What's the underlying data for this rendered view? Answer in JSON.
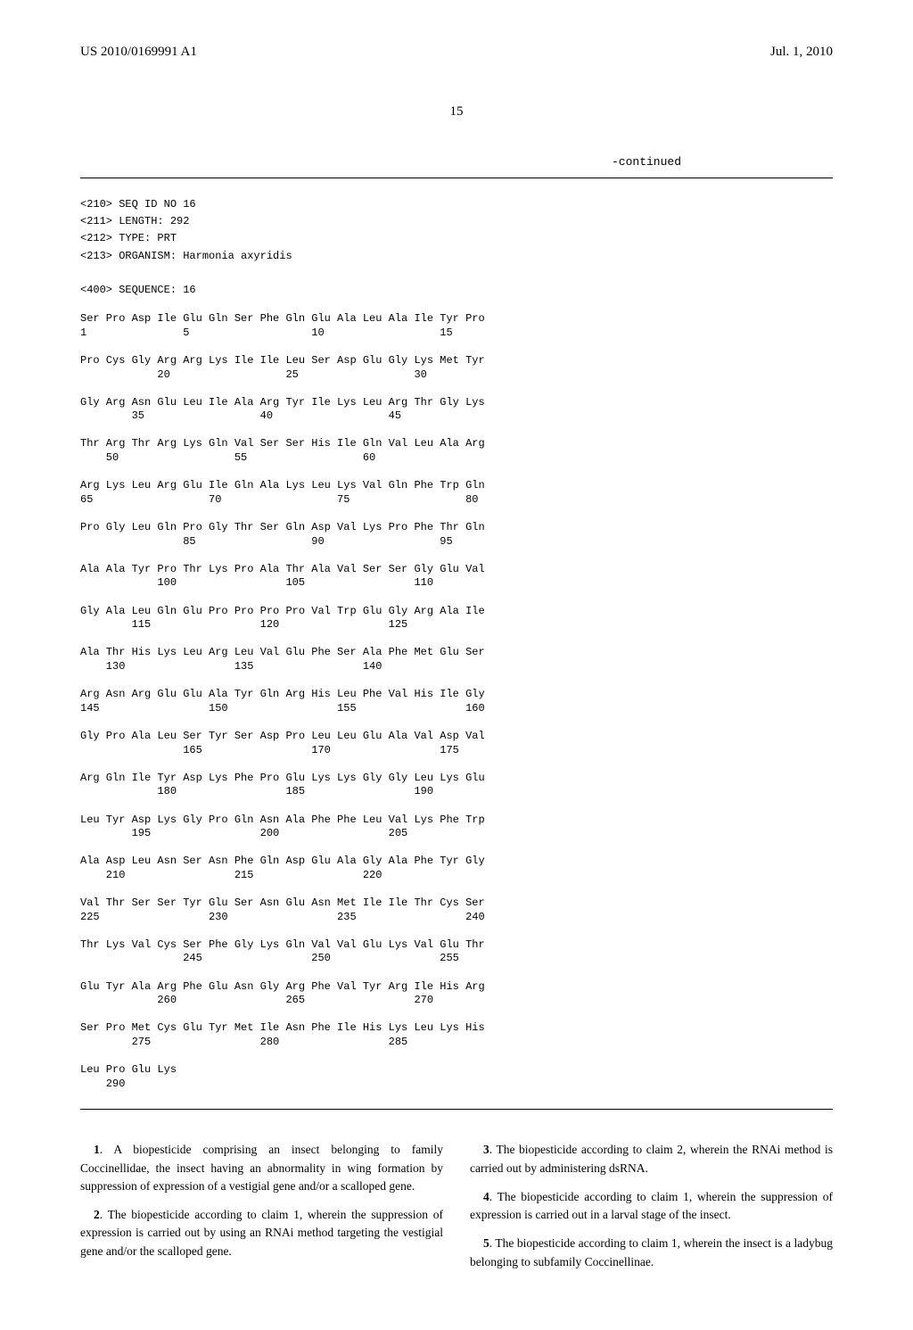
{
  "header": {
    "pub_number": "US 2010/0169991 A1",
    "pub_date": "Jul. 1, 2010"
  },
  "page_number": "15",
  "continued_label": "-continued",
  "sequence_meta": [
    "<210> SEQ ID NO 16",
    "<211> LENGTH: 292",
    "<212> TYPE: PRT",
    "<213> ORGANISM: Harmonia axyridis",
    "",
    "<400> SEQUENCE: 16"
  ],
  "sequence_rows": [
    {
      "aa": "Ser Pro Asp Ile Glu Gln Ser Phe Gln Glu Ala Leu Ala Ile Tyr Pro",
      "nums": "1               5                   10                  15"
    },
    {
      "aa": "Pro Cys Gly Arg Arg Lys Ile Ile Leu Ser Asp Glu Gly Lys Met Tyr",
      "nums": "            20                  25                  30"
    },
    {
      "aa": "Gly Arg Asn Glu Leu Ile Ala Arg Tyr Ile Lys Leu Arg Thr Gly Lys",
      "nums": "        35                  40                  45"
    },
    {
      "aa": "Thr Arg Thr Arg Lys Gln Val Ser Ser His Ile Gln Val Leu Ala Arg",
      "nums": "    50                  55                  60"
    },
    {
      "aa": "Arg Lys Leu Arg Glu Ile Gln Ala Lys Leu Lys Val Gln Phe Trp Gln",
      "nums": "65                  70                  75                  80"
    },
    {
      "aa": "Pro Gly Leu Gln Pro Gly Thr Ser Gln Asp Val Lys Pro Phe Thr Gln",
      "nums": "                85                  90                  95"
    },
    {
      "aa": "Ala Ala Tyr Pro Thr Lys Pro Ala Thr Ala Val Ser Ser Gly Glu Val",
      "nums": "            100                 105                 110"
    },
    {
      "aa": "Gly Ala Leu Gln Glu Pro Pro Pro Pro Val Trp Glu Gly Arg Ala Ile",
      "nums": "        115                 120                 125"
    },
    {
      "aa": "Ala Thr His Lys Leu Arg Leu Val Glu Phe Ser Ala Phe Met Glu Ser",
      "nums": "    130                 135                 140"
    },
    {
      "aa": "Arg Asn Arg Glu Glu Ala Tyr Gln Arg His Leu Phe Val His Ile Gly",
      "nums": "145                 150                 155                 160"
    },
    {
      "aa": "Gly Pro Ala Leu Ser Tyr Ser Asp Pro Leu Leu Glu Ala Val Asp Val",
      "nums": "                165                 170                 175"
    },
    {
      "aa": "Arg Gln Ile Tyr Asp Lys Phe Pro Glu Lys Lys Gly Gly Leu Lys Glu",
      "nums": "            180                 185                 190"
    },
    {
      "aa": "Leu Tyr Asp Lys Gly Pro Gln Asn Ala Phe Phe Leu Val Lys Phe Trp",
      "nums": "        195                 200                 205"
    },
    {
      "aa": "Ala Asp Leu Asn Ser Asn Phe Gln Asp Glu Ala Gly Ala Phe Tyr Gly",
      "nums": "    210                 215                 220"
    },
    {
      "aa": "Val Thr Ser Ser Tyr Glu Ser Asn Glu Asn Met Ile Ile Thr Cys Ser",
      "nums": "225                 230                 235                 240"
    },
    {
      "aa": "Thr Lys Val Cys Ser Phe Gly Lys Gln Val Val Glu Lys Val Glu Thr",
      "nums": "                245                 250                 255"
    },
    {
      "aa": "Glu Tyr Ala Arg Phe Glu Asn Gly Arg Phe Val Tyr Arg Ile His Arg",
      "nums": "            260                 265                 270"
    },
    {
      "aa": "Ser Pro Met Cys Glu Tyr Met Ile Asn Phe Ile His Lys Leu Lys His",
      "nums": "        275                 280                 285"
    },
    {
      "aa": "Leu Pro Glu Lys",
      "nums": "    290"
    }
  ],
  "claims": [
    {
      "num": "1",
      "text": ". A biopesticide comprising an insect belonging to family Coccinellidae, the insect having an abnormality in wing formation by suppression of expression of a vestigial gene and/or a scalloped gene."
    },
    {
      "num": "2",
      "text": ". The biopesticide according to claim 1, wherein the suppression of expression is carried out by using an RNAi method targeting the vestigial gene and/or the scalloped gene."
    },
    {
      "num": "3",
      "text": ". The biopesticide according to claim 2, wherein the RNAi method is carried out by administering dsRNA."
    },
    {
      "num": "4",
      "text": ". The biopesticide according to claim 1, wherein the suppression of expression is carried out in a larval stage of the insect."
    },
    {
      "num": "5",
      "text": ". The biopesticide according to claim 1, wherein the insect is a ladybug belonging to subfamily Coccinellinae."
    }
  ]
}
